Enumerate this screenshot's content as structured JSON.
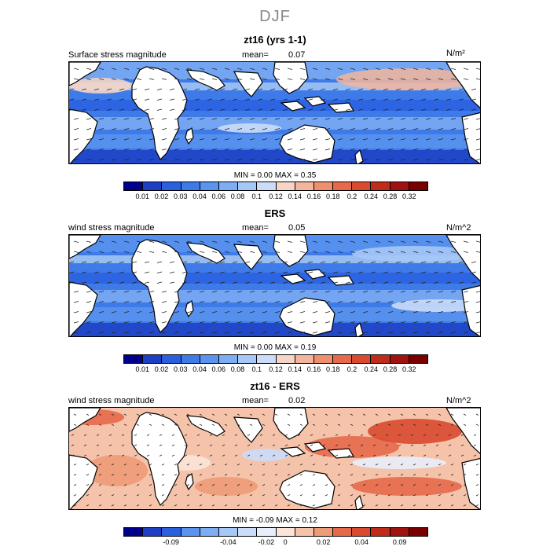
{
  "title": "DJF",
  "panels": [
    {
      "title": "zt16 (yrs 1-1)",
      "left_label": "Surface stress magnitude",
      "mean_label": "mean=",
      "mean_value": "0.07",
      "units": "N/m²",
      "min_label": "MIN =",
      "min_value": "0.00",
      "max_label": "MAX =",
      "max_value": "0.35"
    },
    {
      "title": "ERS",
      "left_label": "wind stress magnitude",
      "mean_label": "mean=",
      "mean_value": "0.05",
      "units": "N/m^2",
      "min_label": "MIN =",
      "min_value": "0.00",
      "max_label": "MAX =",
      "max_value": "0.19"
    },
    {
      "title": "zt16 - ERS",
      "left_label": "wind stress magnitude",
      "mean_label": "mean=",
      "mean_value": "0.02",
      "units": "N/m^2",
      "min_label": "MIN =",
      "min_value": "-0.09",
      "max_label": "MAX =",
      "max_value": "0.12"
    }
  ],
  "colorbar_abs": {
    "colors": [
      "#00008b",
      "#1d3fc4",
      "#2a60e0",
      "#3f7be8",
      "#5b94ef",
      "#7dadf3",
      "#a6c8f6",
      "#cbdcf8",
      "#f5d5c7",
      "#f3b59c",
      "#ee8f6e",
      "#e5694a",
      "#d94a2f",
      "#c02c1a",
      "#a01210",
      "#7a0000"
    ],
    "ticks": [
      "0.01",
      "0.02",
      "0.03",
      "0.04",
      "0.06",
      "0.08",
      "0.1",
      "0.12",
      "0.14",
      "0.16",
      "0.18",
      "0.2",
      "0.24",
      "0.28",
      "0.32"
    ]
  },
  "colorbar_diff": {
    "colors": [
      "#00008b",
      "#1d3fc4",
      "#2a60e0",
      "#5b94ef",
      "#7dadf3",
      "#a6c8f6",
      "#cbdcf8",
      "#e8eefb",
      "#fbe4d8",
      "#f5c2aa",
      "#ee9b77",
      "#e5694a",
      "#d94a2f",
      "#c02c1a",
      "#a01210",
      "#7a0000"
    ],
    "ticks": [
      "-0.09",
      "-0.04",
      "-0.02",
      "0",
      "0.02",
      "0.04",
      "0.09"
    ]
  },
  "chart_data": [
    {
      "type": "heatmap",
      "title": "zt16 (yrs 1-1)",
      "field": "Surface stress magnitude",
      "units": "N/m²",
      "mean": 0.07,
      "min": 0.0,
      "max": 0.35,
      "overlay": "wind stress vectors",
      "colorbar_levels": [
        0.01,
        0.02,
        0.03,
        0.04,
        0.06,
        0.08,
        0.1,
        0.12,
        0.14,
        0.16,
        0.18,
        0.2,
        0.24,
        0.28,
        0.32
      ]
    },
    {
      "type": "heatmap",
      "title": "ERS",
      "field": "wind stress magnitude",
      "units": "N/m^2",
      "mean": 0.05,
      "min": 0.0,
      "max": 0.19,
      "overlay": "wind stress vectors",
      "colorbar_levels": [
        0.01,
        0.02,
        0.03,
        0.04,
        0.06,
        0.08,
        0.1,
        0.12,
        0.14,
        0.16,
        0.18,
        0.2,
        0.24,
        0.28,
        0.32
      ]
    },
    {
      "type": "heatmap",
      "title": "zt16 - ERS",
      "field": "wind stress magnitude",
      "units": "N/m^2",
      "mean": 0.02,
      "min": -0.09,
      "max": 0.12,
      "overlay": "wind stress vector difference",
      "colorbar_levels": [
        -0.09,
        -0.04,
        -0.02,
        0,
        0.02,
        0.04,
        0.09
      ]
    }
  ]
}
